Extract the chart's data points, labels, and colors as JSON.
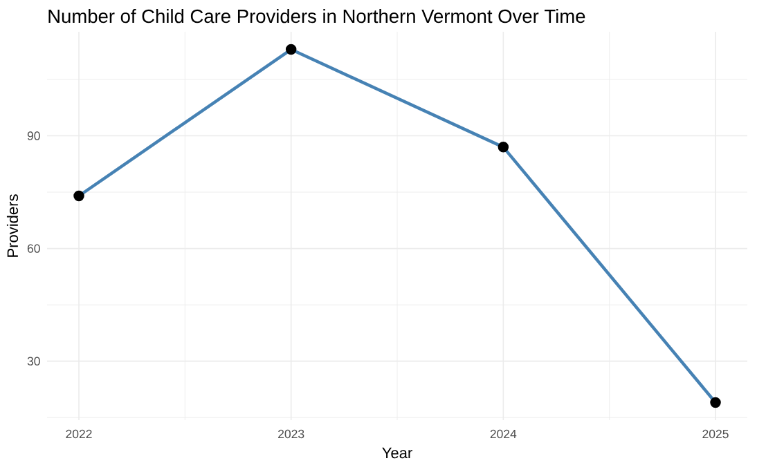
{
  "chart_data": {
    "type": "line",
    "title": "Number of Child Care Providers in Northern Vermont Over Time",
    "xlabel": "Year",
    "ylabel": "Providers",
    "x": [
      2022,
      2023,
      2024,
      2025
    ],
    "series": [
      {
        "color": "#4682b4",
        "values": [
          74,
          113,
          87,
          19
        ]
      }
    ],
    "xlim": [
      2021.85,
      2025.15
    ],
    "ylim": [
      14.3,
      117.7
    ],
    "xticks": [
      2022,
      2023,
      2024,
      2025
    ],
    "yticks": [
      30,
      60,
      90
    ],
    "grid": true,
    "marker": "circle",
    "line_style": "solid"
  }
}
